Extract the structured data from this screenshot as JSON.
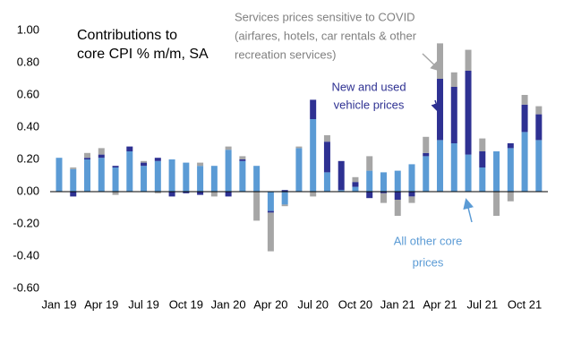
{
  "chart_data": {
    "type": "stacked-bar",
    "title": [
      "Contributions to",
      "core CPI % m/m, SA"
    ],
    "categories": [
      "Jan 19",
      null,
      null,
      "Apr 19",
      null,
      null,
      "Jul 19",
      null,
      null,
      "Oct 19",
      null,
      null,
      "Jan 20",
      null,
      null,
      "Apr 20",
      null,
      null,
      "Jul 20",
      null,
      null,
      "Oct 20",
      null,
      null,
      "Jan 21",
      null,
      null,
      "Apr 21",
      null,
      null,
      "Jul 21",
      null,
      null,
      "Oct 21",
      null
    ],
    "series": [
      {
        "name": "All other core prices",
        "label": [
          "All other core",
          "prices"
        ],
        "color": "#5b9bd5",
        "values": [
          0.21,
          0.14,
          0.2,
          0.21,
          0.15,
          0.25,
          0.16,
          0.19,
          0.2,
          0.18,
          0.16,
          0.16,
          0.26,
          0.19,
          0.16,
          -0.12,
          -0.08,
          0.27,
          0.45,
          0.12,
          0.01,
          0.03,
          0.13,
          0.12,
          0.13,
          0.17,
          0.22,
          0.32,
          0.3,
          0.23,
          0.15,
          0.25,
          0.27,
          0.37,
          0.32
        ]
      },
      {
        "name": "New and used vehicle prices",
        "label": [
          "New and used",
          "vehicle prices"
        ],
        "color": "#2e3192",
        "values": [
          0,
          -0.03,
          0.01,
          0.02,
          0.01,
          0.03,
          0.02,
          0.02,
          -0.03,
          -0.01,
          -0.02,
          0,
          -0.03,
          0.01,
          0,
          -0.01,
          0.01,
          0,
          0.12,
          0.19,
          0.18,
          0.03,
          -0.04,
          -0.01,
          -0.05,
          -0.03,
          0.02,
          0.38,
          0.35,
          0.52,
          0.1,
          0,
          0.03,
          0.17,
          0.16
        ]
      },
      {
        "name": "Services prices sensitive to COVID",
        "label": [
          "Services prices sensitive to COVID",
          "(airfares, hotels, car rentals & other",
          "recreation services)"
        ],
        "color": "#a6a6a6",
        "values": [
          0,
          0.01,
          0.03,
          0.04,
          -0.02,
          0,
          0.01,
          -0.01,
          0,
          0,
          0.02,
          -0.03,
          0.02,
          0.02,
          -0.18,
          -0.24,
          -0.01,
          0.01,
          -0.03,
          0.04,
          0,
          0.03,
          0.09,
          -0.06,
          -0.1,
          -0.04,
          0.1,
          0.22,
          0.09,
          0.13,
          0.08,
          -0.15,
          -0.06,
          0.06,
          0.05
        ]
      }
    ],
    "ylim": [
      -0.6,
      1.0
    ],
    "yticks": [
      {
        "value": -0.6,
        "label": "-0.60"
      },
      {
        "value": -0.4,
        "label": "-0.40"
      },
      {
        "value": -0.2,
        "label": "-0.20"
      },
      {
        "value": 0,
        "label": "0.00"
      },
      {
        "value": 0.2,
        "label": "0.20"
      },
      {
        "value": 0.4,
        "label": "0.40"
      },
      {
        "value": 0.6,
        "label": "0.60"
      },
      {
        "value": 0.8,
        "label": "0.80"
      },
      {
        "value": 1.0,
        "label": "1.00"
      }
    ]
  }
}
